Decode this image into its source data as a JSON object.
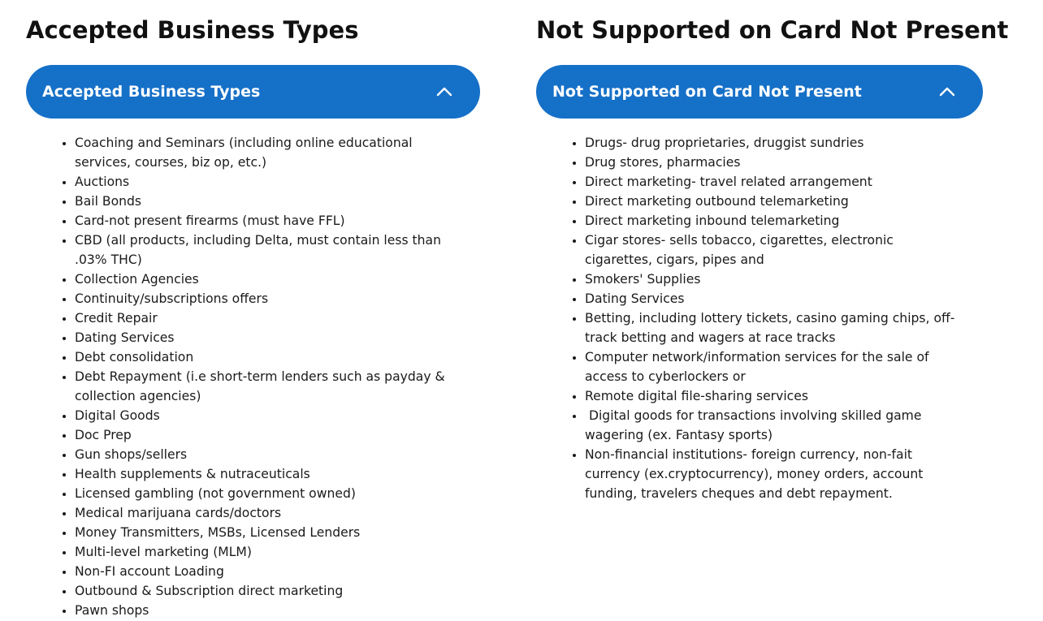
{
  "left": {
    "heading": "Accepted Business Types",
    "accordion_title": "Accepted Business Types",
    "toggle_icon": "chevron-up-icon",
    "items": [
      "Coaching and Seminars (including online educational services, courses, biz op, etc.)",
      "Auctions",
      "Bail Bonds",
      "Card-not present firearms (must have FFL)",
      "CBD (all products, including Delta, must contain less than .03% THC)",
      "Collection Agencies",
      "Continuity/subscriptions offers",
      "Credit Repair",
      "Dating Services",
      "Debt consolidation",
      "Debt Repayment (i.e short-term lenders such as payday & collection agencies)",
      "Digital Goods",
      "Doc Prep",
      "Gun shops/sellers",
      "Health supplements & nutraceuticals",
      "Licensed gambling (not government owned)",
      "Medical marijuana cards/doctors",
      "Money Transmitters, MSBs, Licensed Lenders",
      "Multi-level marketing (MLM)",
      "Non-FI account Loading",
      "Outbound & Subscription direct marketing",
      "Pawn shops"
    ]
  },
  "right": {
    "heading": "Not Supported on Card Not Present",
    "accordion_title": "Not Supported on Card Not Present",
    "toggle_icon": "chevron-up-icon",
    "items": [
      "Drugs- drug proprietaries, druggist sundries",
      "Drug stores, pharmacies",
      "Direct marketing- travel related arrangement",
      "Direct marketing outbound telemarketing",
      "Direct marketing inbound telemarketing",
      "Cigar stores- sells tobacco, cigarettes, electronic cigarettes, cigars, pipes and",
      "Smokers' Supplies",
      "Dating Services",
      "Betting, including lottery tickets, casino gaming chips, off-track betting and wagers at race tracks",
      "Computer network/information services for the sale of access to cyberlockers or",
      "Remote digital file-sharing services",
      " Digital goods for transactions involving skilled game wagering (ex. Fantasy sports)",
      "Non-financial institutions- foreign currency, non-fait currency (ex.cryptocurrency), money orders, account funding, travelers cheques and debt repayment."
    ]
  },
  "colors": {
    "accordion_bg": "#1570c8",
    "accordion_text": "#ffffff",
    "heading_text": "#111111",
    "body_text": "#1a1a1a"
  }
}
